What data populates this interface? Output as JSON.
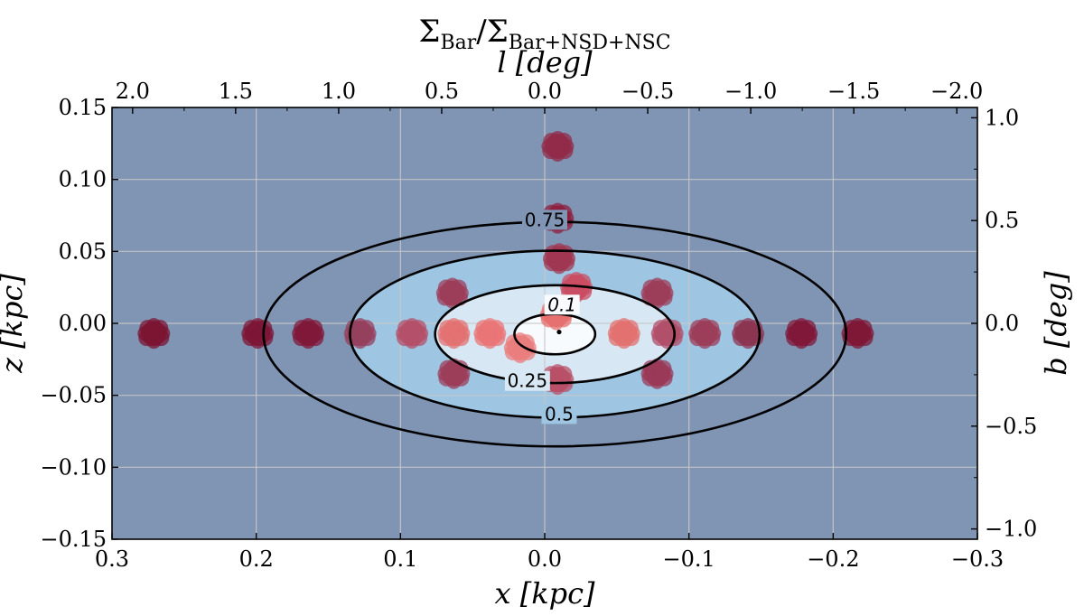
{
  "chart_data": {
    "type": "heatmap",
    "title_main": "Σ",
    "title_main_sub": "Bar",
    "title_slash": "/",
    "title_denom": "Σ",
    "title_denom_sub": "Bar+NSD+NSC",
    "xlabel": "x [kpc]",
    "ylabel": "z [kpc]",
    "top_xlabel": "l [deg]",
    "right_ylabel": "b [deg]",
    "xlim": [
      0.3,
      -0.3
    ],
    "ylim": [
      -0.15,
      0.15
    ],
    "top_xlim": [
      2.1,
      -2.1
    ],
    "right_ylim": [
      -1.05,
      1.05
    ],
    "x_ticks": [
      0.3,
      0.2,
      0.1,
      0.0,
      -0.1,
      -0.2,
      -0.3
    ],
    "x_tick_labels": [
      "0.3",
      "0.2",
      "0.1",
      "0.0",
      "−0.1",
      "−0.2",
      "−0.3"
    ],
    "y_ticks": [
      0.15,
      0.1,
      0.05,
      0.0,
      -0.05,
      -0.1,
      -0.15
    ],
    "y_tick_labels": [
      "0.15",
      "0.10",
      "0.05",
      "0.00",
      "−0.05",
      "−0.10",
      "−0.15"
    ],
    "top_ticks": [
      2.0,
      1.5,
      1.0,
      0.5,
      0.0,
      -0.5,
      -1.0,
      -1.5,
      -2.0
    ],
    "top_tick_labels": [
      "2.0",
      "1.5",
      "1.0",
      "0.5",
      "0.0",
      "−0.5",
      "−1.0",
      "−1.5",
      "−2.0"
    ],
    "right_ticks": [
      1.0,
      0.5,
      0.0,
      -0.5,
      -1.0
    ],
    "right_tick_labels": [
      "1.0",
      "0.5",
      "0.0",
      "−0.5",
      "−1.0"
    ],
    "grid": true,
    "contour_levels": [
      {
        "label": "0.1",
        "value": 0.1,
        "semi_x": 0.028,
        "semi_z": 0.014,
        "fill": "#f8fbfe",
        "label_pos": [
          -0.012,
          0.013
        ]
      },
      {
        "label": "0.25",
        "value": 0.25,
        "semi_x": 0.083,
        "semi_z": 0.034,
        "fill": "#d8e7f4",
        "label_pos": [
          0.012,
          -0.04
        ]
      },
      {
        "label": "0.5",
        "value": 0.5,
        "semi_x": 0.142,
        "semi_z": 0.058,
        "fill": "#9ec6e2",
        "label_pos": [
          -0.01,
          -0.063
        ]
      },
      {
        "label": "0.75",
        "value": 0.75,
        "semi_x": 0.202,
        "semi_z": 0.078,
        "fill": "#8095b3",
        "label_pos": [
          0.0,
          0.072
        ]
      }
    ],
    "background_fill": "#8095b3",
    "contour_center": [
      -0.007,
      -0.0075
    ],
    "center_marker": [
      -0.01,
      -0.006
    ],
    "points": [
      {
        "x": -0.009,
        "z": 0.123,
        "color": "#922b49"
      },
      {
        "x": -0.009,
        "z": 0.073,
        "color": "#8d2040"
      },
      {
        "x": -0.01,
        "z": 0.045,
        "color": "#a03752"
      },
      {
        "x": 0.064,
        "z": 0.021,
        "color": "#9c3d5a"
      },
      {
        "x": -0.022,
        "z": 0.025,
        "color": "#c94e63"
      },
      {
        "x": -0.078,
        "z": 0.021,
        "color": "#9c3d5a"
      },
      {
        "x": -0.008,
        "z": 0.006,
        "color": "#e6706f"
      },
      {
        "x": 0.271,
        "z": -0.007,
        "color": "#7b1533"
      },
      {
        "x": 0.199,
        "z": -0.007,
        "color": "#7e1737"
      },
      {
        "x": 0.164,
        "z": -0.007,
        "color": "#80183a"
      },
      {
        "x": 0.128,
        "z": -0.007,
        "color": "#95405d"
      },
      {
        "x": 0.092,
        "z": -0.007,
        "color": "#b4506a"
      },
      {
        "x": 0.063,
        "z": -0.007,
        "color": "#e37271"
      },
      {
        "x": 0.038,
        "z": -0.007,
        "color": "#e97577"
      },
      {
        "x": 0.017,
        "z": -0.017,
        "color": "#e97e7d"
      },
      {
        "x": -0.055,
        "z": -0.007,
        "color": "#e27270"
      },
      {
        "x": -0.085,
        "z": -0.007,
        "color": "#b14f69"
      },
      {
        "x": -0.111,
        "z": -0.007,
        "color": "#9c3d5a"
      },
      {
        "x": -0.141,
        "z": -0.007,
        "color": "#8c3552"
      },
      {
        "x": -0.178,
        "z": -0.007,
        "color": "#80183a"
      },
      {
        "x": -0.217,
        "z": -0.007,
        "color": "#7f1837"
      },
      {
        "x": 0.063,
        "z": -0.035,
        "color": "#9c3d5a"
      },
      {
        "x": -0.078,
        "z": -0.035,
        "color": "#9a3a58"
      },
      {
        "x": -0.009,
        "z": -0.039,
        "color": "#b85068"
      }
    ]
  }
}
